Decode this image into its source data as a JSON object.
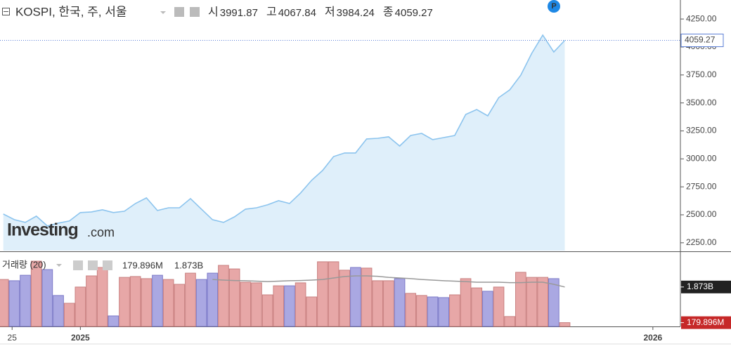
{
  "chart_data": [
    {
      "type": "area",
      "title": "KOSPI, 한국, 주, 서울",
      "ohlc": [
        {
          "label": "시",
          "value": 3991.87
        },
        {
          "label": "고",
          "value": 4067.84
        },
        {
          "label": "저",
          "value": 3984.24
        },
        {
          "label": "종",
          "value": 4059.27
        }
      ],
      "logo": "Investing",
      "logo_suffix": ".com",
      "badge": "P",
      "xlim": [
        -0.3,
        61.5
      ],
      "xticks": [
        {
          "value": 0.8,
          "label": "25"
        },
        {
          "value": 7,
          "label": "2025"
        },
        {
          "value": 59,
          "label": "2026"
        }
      ],
      "ylim": [
        2180,
        4420
      ],
      "yticks": [
        {
          "value": 2250,
          "label": "2250.00"
        },
        {
          "value": 2500,
          "label": "2500.00"
        },
        {
          "value": 2750,
          "label": "2750.00"
        },
        {
          "value": 3000,
          "label": "3000.00"
        },
        {
          "value": 3250,
          "label": "3250.00"
        },
        {
          "value": 3500,
          "label": "3500.00"
        },
        {
          "value": 3750,
          "label": "3750.00"
        },
        {
          "value": 4000,
          "label": "4000.00"
        },
        {
          "value": 4250,
          "label": "4250.00"
        }
      ],
      "series": [
        {
          "color": "#8cc4ee",
          "fill": "#dfeffa",
          "values": [
            2507,
            2457,
            2432,
            2488,
            2400,
            2426,
            2445,
            2520,
            2526,
            2545,
            2520,
            2532,
            2601,
            2651,
            2538,
            2563,
            2563,
            2645,
            2551,
            2457,
            2432,
            2482,
            2551,
            2563,
            2589,
            2626,
            2601,
            2695,
            2808,
            2896,
            3021,
            3053,
            3053,
            3178,
            3184,
            3197,
            3115,
            3209,
            3228,
            3172,
            3190,
            3209,
            3397,
            3441,
            3385,
            3548,
            3617,
            3748,
            3943,
            4106,
            3955,
            4059.27
          ]
        }
      ]
    },
    {
      "type": "bar",
      "title": "거래량 (20)",
      "xlim": [
        -0.3,
        61.5
      ],
      "ylim": [
        0,
        3.5
      ],
      "series": [
        {
          "values": [
            2.23,
            2.17,
            2.43,
            3.1,
            2.7,
            1.47,
            1.1,
            1.87,
            2.4,
            2.8,
            0.5,
            2.33,
            2.37,
            2.27,
            2.43,
            2.23,
            2.0,
            2.53,
            2.23,
            2.53,
            2.9,
            2.73,
            2.1,
            2.07,
            1.5,
            1.93,
            1.93,
            2.07,
            1.4,
            3.07,
            3.07,
            2.67,
            2.8,
            2.77,
            2.17,
            2.17,
            2.27,
            1.57,
            1.47,
            1.4,
            1.37,
            1.5,
            2.27,
            1.83,
            1.67,
            1.87,
            0.47,
            2.57,
            2.33,
            2.33,
            2.27,
            0.179896
          ],
          "value_labels": [
            null,
            null,
            null,
            null,
            null,
            null,
            null,
            null,
            null,
            null,
            null,
            null,
            null,
            null,
            null,
            null,
            null,
            null,
            null,
            null,
            null,
            null,
            null,
            null,
            null,
            null,
            null,
            null,
            null,
            null,
            null,
            null,
            null,
            null,
            null,
            null,
            null,
            null,
            null,
            null,
            null,
            null,
            null,
            null,
            null,
            null,
            null,
            null,
            null,
            null,
            null,
            "179.896M"
          ],
          "label_color": "#c62828",
          "colors": [
            "#e7a7a7",
            "#aaa8e2",
            "#aaa8e2",
            "#e7a7a7",
            "#aaa8e2",
            "#aaa8e2",
            "#e7a7a7",
            "#e7a7a7",
            "#e7a7a7",
            "#e7a7a7",
            "#aaa8e2",
            "#e7a7a7",
            "#e7a7a7",
            "#e7a7a7",
            "#aaa8e2",
            "#e7a7a7",
            "#e7a7a7",
            "#e7a7a7",
            "#aaa8e2",
            "#aaa8e2",
            "#e7a7a7",
            "#e7a7a7",
            "#e7a7a7",
            "#e7a7a7",
            "#e7a7a7",
            "#e7a7a7",
            "#aaa8e2",
            "#e7a7a7",
            "#e7a7a7",
            "#e7a7a7",
            "#e7a7a7",
            "#e7a7a7",
            "#aaa8e2",
            "#e7a7a7",
            "#e7a7a7",
            "#e7a7a7",
            "#aaa8e2",
            "#e7a7a7",
            "#e7a7a7",
            "#aaa8e2",
            "#aaa8e2",
            "#e7a7a7",
            "#e7a7a7",
            "#e7a7a7",
            "#aaa8e2",
            "#e7a7a7",
            "#e7a7a7",
            "#e7a7a7",
            "#e7a7a7",
            "#e7a7a7",
            "#aaa8e2",
            "#e7a7a7"
          ]
        },
        {
          "type": "line",
          "color": "#999999",
          "label_color": "#222222",
          "values": [
            null,
            null,
            null,
            null,
            null,
            null,
            null,
            null,
            null,
            null,
            null,
            null,
            null,
            null,
            null,
            null,
            null,
            null,
            null,
            2.23,
            2.2,
            2.18,
            2.17,
            2.15,
            2.13,
            2.15,
            2.17,
            2.18,
            2.2,
            2.23,
            2.3,
            2.37,
            2.4,
            2.4,
            2.38,
            2.33,
            2.3,
            2.27,
            2.23,
            2.2,
            2.17,
            2.15,
            2.13,
            2.1,
            2.1,
            2.1,
            2.08,
            2.08,
            2.1,
            2.1,
            2.0,
            1.873
          ],
          "value_labels": [
            null,
            null,
            null,
            null,
            null,
            null,
            null,
            null,
            null,
            null,
            null,
            null,
            null,
            null,
            null,
            null,
            null,
            null,
            null,
            null,
            null,
            null,
            null,
            null,
            null,
            null,
            null,
            null,
            null,
            null,
            null,
            null,
            null,
            null,
            null,
            null,
            null,
            null,
            null,
            null,
            null,
            null,
            null,
            null,
            null,
            null,
            null,
            null,
            null,
            null,
            null,
            "1.873B"
          ]
        }
      ]
    }
  ]
}
